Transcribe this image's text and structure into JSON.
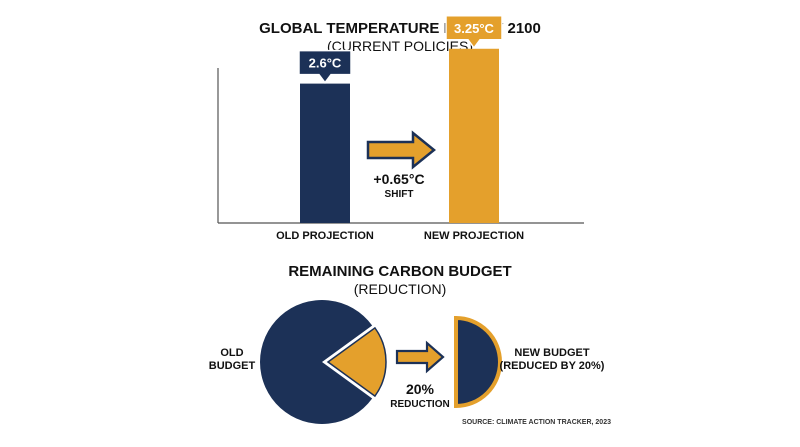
{
  "colors": {
    "navy": "#1c3157",
    "gold": "#e4a02c",
    "text": "#111111",
    "axis": "#555555"
  },
  "chart_data": [
    {
      "type": "bar",
      "title": "GLOBAL TEMPERATURE RISE BY 2100",
      "subtitle": "(CURRENT POLICIES)",
      "categories": [
        "OLD PROJECTION",
        "NEW PROJECTION"
      ],
      "values": [
        2.6,
        3.25
      ],
      "value_labels": [
        "2.6°C",
        "3.25°C"
      ],
      "bar_colors": [
        "#1c3157",
        "#e4a02c"
      ],
      "ylim": [
        0,
        3.6
      ],
      "grid": false,
      "annotation": {
        "arrow": "right",
        "text_value": "+0.65°C",
        "text_caption": "SHIFT"
      }
    },
    {
      "type": "pie",
      "title": "REMAINING CARBON BUDGET",
      "subtitle": "(REDUCTION)",
      "old_label_lines": [
        "OLD",
        "BUDGET"
      ],
      "old_slices": [
        {
          "name": "remaining",
          "value": 80,
          "color": "#1c3157"
        },
        {
          "name": "reduction",
          "value": 20,
          "color": "#e4a02c"
        }
      ],
      "new_label_lines": [
        "NEW BUDGET",
        "(REDUCED BY 20%)"
      ],
      "new_budget_fraction": 0.8,
      "annotation": {
        "arrow": "right",
        "text_value": "20%",
        "text_caption": "REDUCTION"
      }
    }
  ],
  "source": "SOURCE: CLIMATE ACTION TRACKER, 2023"
}
